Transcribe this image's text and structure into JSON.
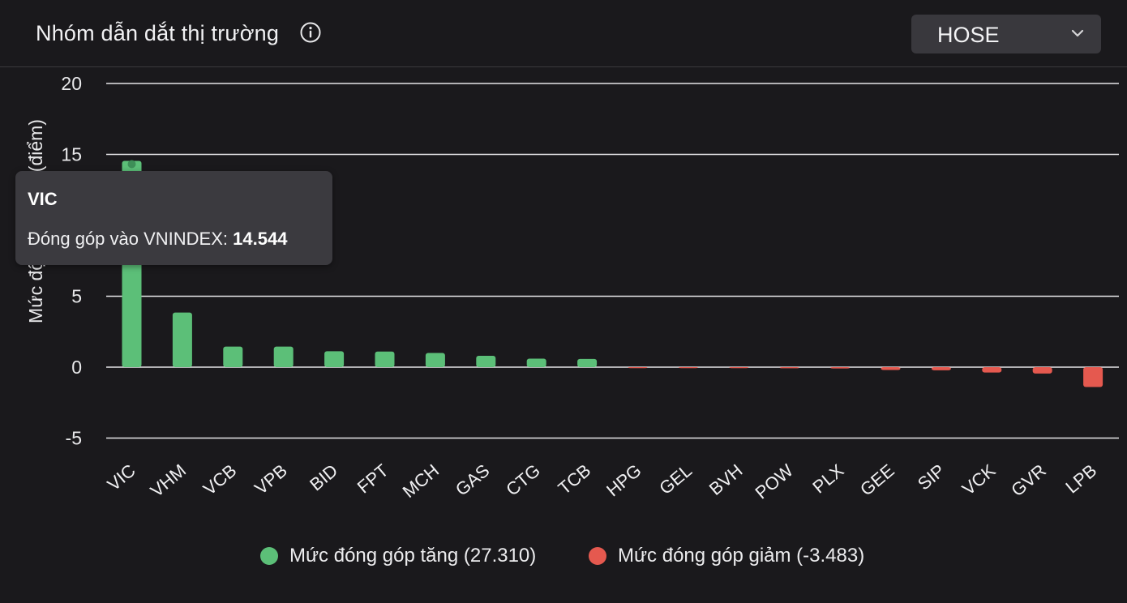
{
  "header": {
    "title": "Nhóm dẫn dắt thị trường",
    "info_icon": "info-circle-icon",
    "exchange_select": {
      "selected": "HOSE",
      "icon": "chevron-down-icon"
    }
  },
  "colors": {
    "positive": "#5cbf78",
    "negative": "#e5594f",
    "background": "#1a191c",
    "grid": "#e6e6e8"
  },
  "chart_data": {
    "type": "bar",
    "ylabel": "Mức độ đóng góp (điểm)",
    "ylim": [
      -5,
      20
    ],
    "yticks": [
      20,
      15,
      5,
      0,
      -5
    ],
    "grid": true,
    "categories": [
      "VIC",
      "VHM",
      "VCB",
      "VPB",
      "BID",
      "FPT",
      "MCH",
      "GAS",
      "CTG",
      "TCB",
      "HPG",
      "GEL",
      "BVH",
      "POW",
      "PLX",
      "GEE",
      "SIP",
      "VCK",
      "GVR",
      "LPB"
    ],
    "values": [
      14.544,
      3.85,
      1.45,
      1.45,
      1.12,
      1.1,
      1.0,
      0.8,
      0.6,
      0.58,
      -0.05,
      -0.06,
      -0.07,
      -0.08,
      -0.09,
      -0.2,
      -0.22,
      -0.38,
      -0.45,
      -1.4
    ],
    "legend_position": "bottom-center",
    "legend": [
      {
        "label": "Mức đóng góp tăng (27.310)",
        "color": "#5cbf78"
      },
      {
        "label": "Mức đóng góp giảm (-3.483)",
        "color": "#e5594f"
      }
    ]
  },
  "tooltip": {
    "title": "VIC",
    "label": "Đóng góp vào VNINDEX: ",
    "value": "14.544"
  }
}
